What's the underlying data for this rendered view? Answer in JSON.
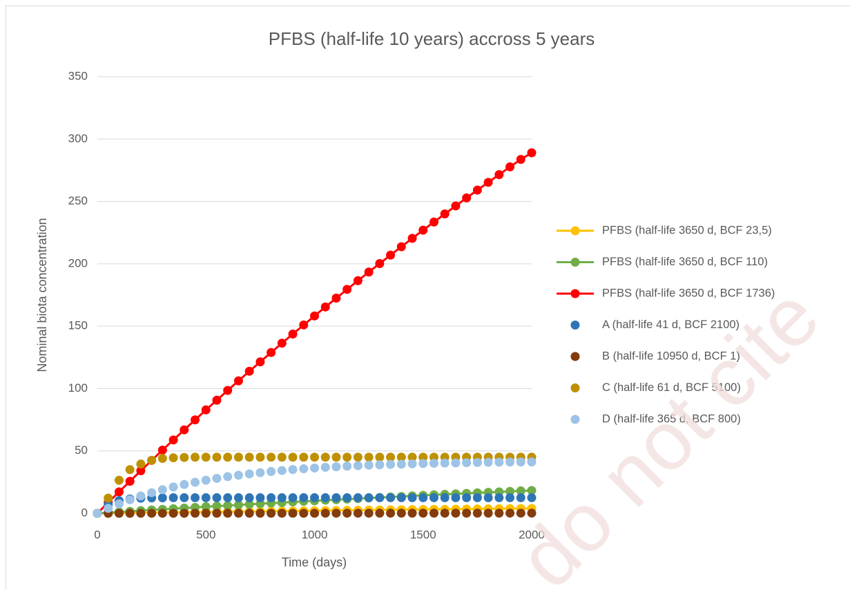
{
  "chart_data": {
    "type": "scatter",
    "title": "PFBS (half-life 10 years) accross 5 years",
    "xlabel": "Time (days)",
    "ylabel": "Nominal biota concentration",
    "watermark": "do not cite",
    "xlim": [
      0,
      2000
    ],
    "xticks": [
      0,
      500,
      1000,
      1500,
      2000
    ],
    "ylim": [
      0,
      350
    ],
    "yticks": [
      0,
      50,
      100,
      150,
      200,
      250,
      300,
      350
    ],
    "grid": true,
    "legend": "right",
    "x": [
      0,
      50,
      100,
      150,
      200,
      250,
      300,
      350,
      400,
      450,
      500,
      550,
      600,
      650,
      700,
      750,
      800,
      850,
      900,
      950,
      1000,
      1050,
      1100,
      1150,
      1200,
      1250,
      1300,
      1350,
      1400,
      1450,
      1500,
      1550,
      1600,
      1650,
      1700,
      1750,
      1800,
      1850,
      1900,
      1950,
      2000
    ],
    "series": [
      {
        "name": "PFBS (half-life 3650 d, BCF 23,5)",
        "color": "#FFC000",
        "line": true,
        "values": [
          0,
          0.1,
          0.2,
          0.3,
          0.5,
          0.6,
          0.7,
          0.8,
          0.9,
          1.0,
          1.1,
          1.2,
          1.3,
          1.4,
          1.5,
          1.6,
          1.7,
          1.8,
          1.9,
          2.0,
          2.1,
          2.2,
          2.3,
          2.4,
          2.5,
          2.6,
          2.7,
          2.8,
          2.9,
          3.0,
          3.1,
          3.2,
          3.2,
          3.3,
          3.4,
          3.5,
          3.6,
          3.7,
          3.8,
          3.8,
          3.9
        ]
      },
      {
        "name": "PFBS (half-life 3650 d, BCF 110)",
        "color": "#70AD47",
        "line": true,
        "values": [
          0,
          0.5,
          1.1,
          1.6,
          2.2,
          2.7,
          3.2,
          3.7,
          4.2,
          4.7,
          5.3,
          5.8,
          6.2,
          6.7,
          7.2,
          7.7,
          8.2,
          8.6,
          9.1,
          9.6,
          10.0,
          10.5,
          10.9,
          11.4,
          11.8,
          12.3,
          12.7,
          13.1,
          13.5,
          14.0,
          14.4,
          14.8,
          15.2,
          15.6,
          16.0,
          16.4,
          16.8,
          17.2,
          17.6,
          18.0,
          18.3
        ]
      },
      {
        "name": "PFBS (half-life 3650 d, BCF 1736)",
        "color": "#FF0000",
        "line": true,
        "values": [
          0,
          8.6,
          17.2,
          25.7,
          34.1,
          42.4,
          50.7,
          58.8,
          66.9,
          74.9,
          82.9,
          90.7,
          98.5,
          106.2,
          113.9,
          121.4,
          128.9,
          136.4,
          143.7,
          151.0,
          158.2,
          165.4,
          172.5,
          179.5,
          186.5,
          193.4,
          200.2,
          207.0,
          213.7,
          220.4,
          227.0,
          233.5,
          240.0,
          246.4,
          252.8,
          259.1,
          265.3,
          271.5,
          277.7,
          283.7,
          289
        ]
      },
      {
        "name": "A (half-life 41 d, BCF 2100)",
        "color": "#2E75B6",
        "line": false,
        "values": [
          0,
          7.1,
          10.2,
          11.5,
          12.1,
          12.3,
          12.4,
          12.5,
          12.5,
          12.5,
          12.5,
          12.5,
          12.5,
          12.5,
          12.5,
          12.5,
          12.5,
          12.5,
          12.5,
          12.5,
          12.5,
          12.5,
          12.5,
          12.5,
          12.5,
          12.5,
          12.5,
          12.5,
          12.5,
          12.5,
          12.5,
          12.5,
          12.5,
          12.5,
          12.5,
          12.5,
          12.5,
          12.5,
          12.5,
          12.5,
          12.5
        ]
      },
      {
        "name": "B (half-life 10950 d, BCF 1)",
        "color": "#843C0C",
        "line": false,
        "values": [
          0,
          0,
          0.01,
          0.01,
          0.02,
          0.02,
          0.03,
          0.03,
          0.03,
          0.04,
          0.04,
          0.05,
          0.05,
          0.05,
          0.06,
          0.06,
          0.07,
          0.07,
          0.08,
          0.08,
          0.08,
          0.09,
          0.09,
          0.1,
          0.1,
          0.1,
          0.11,
          0.11,
          0.12,
          0.12,
          0.12,
          0.13,
          0.13,
          0.14,
          0.14,
          0.14,
          0.15,
          0.15,
          0.16,
          0.16,
          0.17
        ]
      },
      {
        "name": "C (half-life 61 d, BCF 5100)",
        "color": "#BF9000",
        "line": false,
        "values": [
          0,
          12.2,
          26.5,
          35,
          39.5,
          42.5,
          44,
          44.5,
          44.8,
          45,
          45,
          45,
          45,
          45,
          45,
          45,
          45,
          45,
          45,
          45,
          45,
          45,
          45,
          45,
          45,
          45,
          45,
          45,
          45,
          45,
          45,
          45,
          45,
          45,
          45,
          45,
          45,
          45,
          45,
          45,
          45
        ]
      },
      {
        "name": "D (half-life 365 d, BCF 800)",
        "color": "#9DC3E6",
        "line": false,
        "values": [
          0,
          4.0,
          7.6,
          10.9,
          13.9,
          16.5,
          18.9,
          21.1,
          23.1,
          24.9,
          26.5,
          28.0,
          29.4,
          30.5,
          31.6,
          32.6,
          33.5,
          34.3,
          35.1,
          35.7,
          36.3,
          36.9,
          37.3,
          37.8,
          38.2,
          38.6,
          38.9,
          39.2,
          39.4,
          39.7,
          39.9,
          40.1,
          40.3,
          40.4,
          40.6,
          40.7,
          40.9,
          41.0,
          41.1,
          41.2,
          41.2
        ]
      }
    ]
  }
}
